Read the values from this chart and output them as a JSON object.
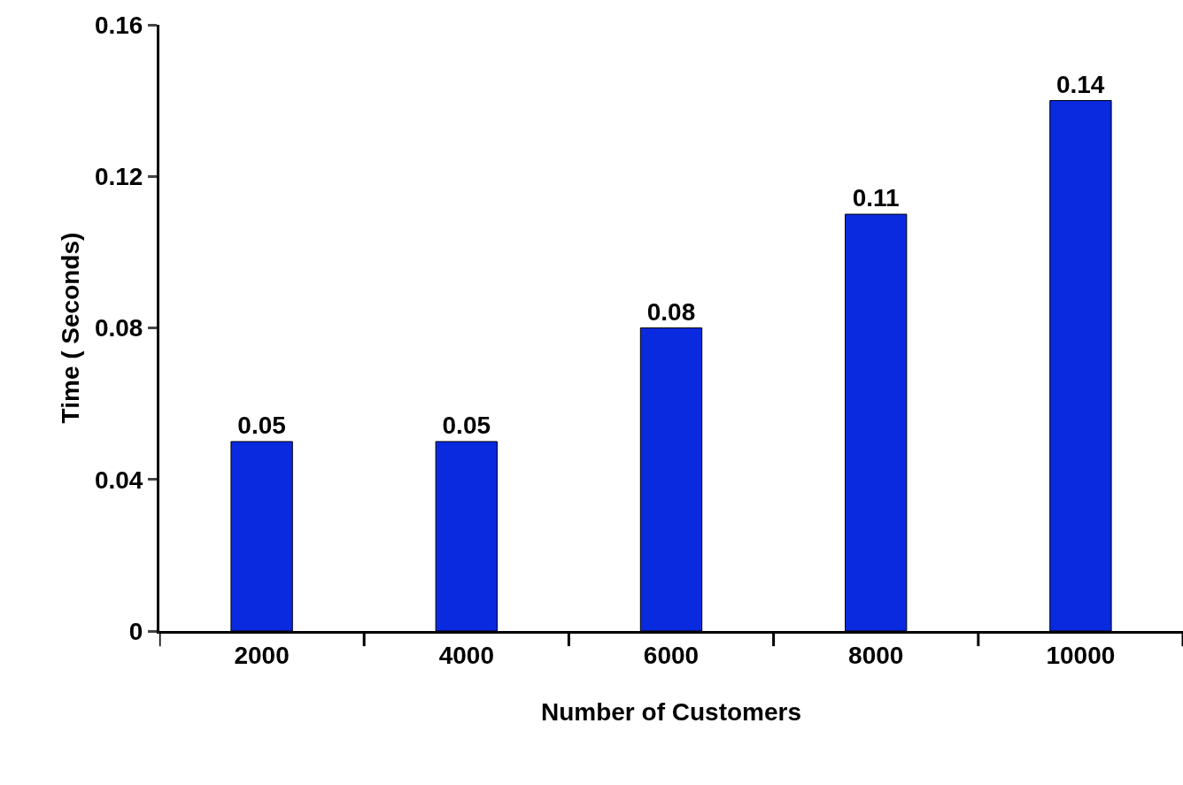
{
  "chart_data": {
    "type": "bar",
    "xlabel": "Number of Customers",
    "ylabel": "Time ( Seconds)",
    "categories": [
      "2000",
      "4000",
      "6000",
      "8000",
      "10000"
    ],
    "values": [
      0.05,
      0.05,
      0.08,
      0.11,
      0.14
    ],
    "color": "#0a2ae0",
    "ylim": [
      0,
      0.16
    ],
    "yticks": [
      0,
      0.04,
      0.08,
      0.12,
      0.16
    ],
    "data_labels": true
  }
}
